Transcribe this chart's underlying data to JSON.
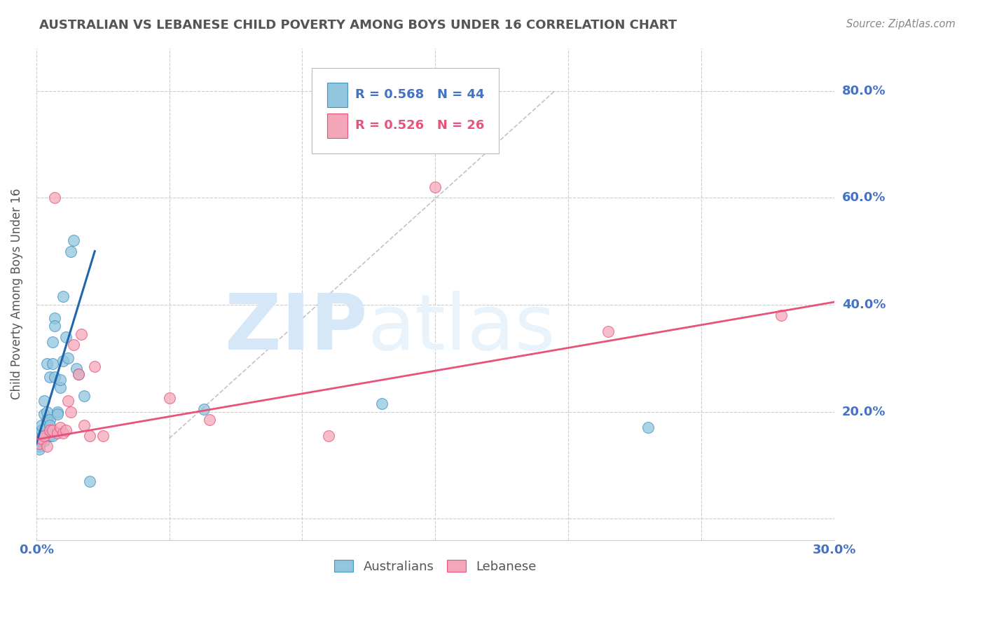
{
  "title": "AUSTRALIAN VS LEBANESE CHILD POVERTY AMONG BOYS UNDER 16 CORRELATION CHART",
  "source": "Source: ZipAtlas.com",
  "ylabel": "Child Poverty Among Boys Under 16",
  "xlim": [
    0.0,
    0.3
  ],
  "ylim": [
    -0.04,
    0.88
  ],
  "yticks": [
    0.0,
    0.2,
    0.4,
    0.6,
    0.8
  ],
  "xticks": [
    0.0,
    0.05,
    0.1,
    0.15,
    0.2,
    0.25,
    0.3
  ],
  "xtick_labels": [
    "0.0%",
    "",
    "",
    "",
    "",
    "",
    "30.0%"
  ],
  "ytick_labels": [
    "",
    "20.0%",
    "40.0%",
    "60.0%",
    "80.0%"
  ],
  "aus_color": "#92c5de",
  "leb_color": "#f4a7b9",
  "aus_edge_color": "#4393c3",
  "leb_edge_color": "#e8537a",
  "aus_trend_color": "#2166ac",
  "leb_trend_color": "#e8537a",
  "watermark_zip": "ZIP",
  "watermark_atlas": "atlas",
  "watermark_color": "#d6e8f7",
  "title_color": "#555555",
  "axis_color": "#4472c4",
  "grid_color": "#cccccc",
  "aus_x": [
    0.001,
    0.001,
    0.001,
    0.001,
    0.001,
    0.002,
    0.002,
    0.002,
    0.002,
    0.002,
    0.003,
    0.003,
    0.003,
    0.003,
    0.004,
    0.004,
    0.004,
    0.005,
    0.005,
    0.005,
    0.005,
    0.006,
    0.006,
    0.006,
    0.007,
    0.007,
    0.007,
    0.008,
    0.008,
    0.009,
    0.009,
    0.01,
    0.01,
    0.011,
    0.012,
    0.013,
    0.014,
    0.015,
    0.016,
    0.018,
    0.02,
    0.063,
    0.13,
    0.23
  ],
  "aus_y": [
    0.155,
    0.14,
    0.16,
    0.135,
    0.13,
    0.145,
    0.165,
    0.165,
    0.15,
    0.175,
    0.145,
    0.195,
    0.22,
    0.155,
    0.185,
    0.29,
    0.2,
    0.155,
    0.265,
    0.185,
    0.175,
    0.29,
    0.33,
    0.155,
    0.265,
    0.375,
    0.36,
    0.2,
    0.195,
    0.245,
    0.26,
    0.295,
    0.415,
    0.34,
    0.3,
    0.5,
    0.52,
    0.28,
    0.27,
    0.23,
    0.07,
    0.205,
    0.215,
    0.17
  ],
  "leb_x": [
    0.001,
    0.002,
    0.003,
    0.004,
    0.005,
    0.006,
    0.007,
    0.008,
    0.009,
    0.01,
    0.011,
    0.012,
    0.013,
    0.014,
    0.016,
    0.017,
    0.018,
    0.02,
    0.022,
    0.025,
    0.05,
    0.065,
    0.11,
    0.15,
    0.215,
    0.28
  ],
  "leb_y": [
    0.14,
    0.15,
    0.155,
    0.135,
    0.165,
    0.165,
    0.6,
    0.16,
    0.17,
    0.16,
    0.165,
    0.22,
    0.2,
    0.325,
    0.27,
    0.345,
    0.175,
    0.155,
    0.285,
    0.155,
    0.225,
    0.185,
    0.155,
    0.62,
    0.35,
    0.38
  ],
  "aus_trend_x": [
    0.0,
    0.022
  ],
  "aus_trend_y": [
    0.14,
    0.5
  ],
  "leb_trend_x": [
    0.0,
    0.3
  ],
  "leb_trend_y": [
    0.148,
    0.405
  ],
  "ref_line_x": [
    0.05,
    0.195
  ],
  "ref_line_y": [
    0.15,
    0.8
  ]
}
